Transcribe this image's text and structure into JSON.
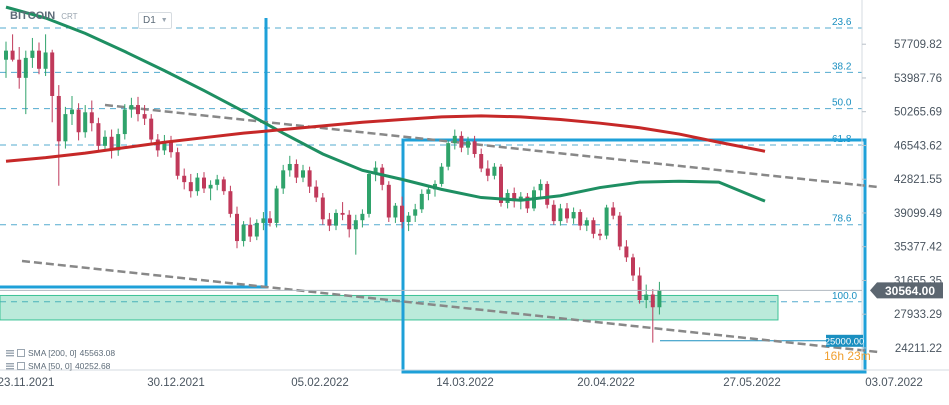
{
  "header": {
    "symbol": "BITCOIN",
    "symbol_sub": "CRT",
    "timeframe": "D1"
  },
  "indicators": [
    {
      "label": "SMA [200, 0]",
      "value": "45563.08",
      "color": "#c62828"
    },
    {
      "label": "SMA [50, 0]",
      "value": "40252.68",
      "color": "#1e8f62"
    }
  ],
  "countdown": "16h 23m",
  "price_tag": "30564.00",
  "level_tag": "25000.00",
  "chart_data": {
    "type": "candlestick",
    "x_ticks": [
      "23.11.2021",
      "30.12.2021",
      "05.02.2022",
      "14.03.2022",
      "20.04.2022",
      "27.05.2022",
      "03.07.2022"
    ],
    "y_ticks": [
      "57709.82",
      "53987.76",
      "50265.69",
      "46543.62",
      "42821.55",
      "39099.49",
      "35377.42",
      "31655.35",
      "27933.29",
      "24211.22"
    ],
    "ylim": [
      22000,
      60600
    ],
    "fib_levels": [
      {
        "label": "23.6",
        "price": 59500
      },
      {
        "label": "38.2",
        "price": 54600
      },
      {
        "label": "50.0",
        "price": 50600
      },
      {
        "label": "61.8",
        "price": 46600
      },
      {
        "label": "78.6",
        "price": 37800
      },
      {
        "label": "100.0",
        "price": 29300
      }
    ],
    "current_price": 30564.0,
    "support_zone": [
      27300,
      30000
    ],
    "support_level": 25000.0,
    "sma_200": [
      [
        0,
        44800
      ],
      [
        6,
        45200
      ],
      [
        12,
        45700
      ],
      [
        18,
        46300
      ],
      [
        24,
        46900
      ],
      [
        30,
        47400
      ],
      [
        36,
        47900
      ],
      [
        42,
        48300
      ],
      [
        48,
        48700
      ],
      [
        54,
        49100
      ],
      [
        60,
        49400
      ],
      [
        66,
        49700
      ],
      [
        72,
        49800
      ],
      [
        78,
        49700
      ],
      [
        84,
        49400
      ],
      [
        90,
        49000
      ],
      [
        96,
        48500
      ],
      [
        102,
        47800
      ],
      [
        108,
        46900
      ],
      [
        115,
        45900
      ]
    ],
    "sma_50": [
      [
        0,
        61800
      ],
      [
        6,
        60600
      ],
      [
        12,
        58900
      ],
      [
        18,
        56900
      ],
      [
        24,
        54800
      ],
      [
        30,
        52600
      ],
      [
        36,
        50300
      ],
      [
        42,
        47900
      ],
      [
        48,
        45600
      ],
      [
        54,
        43800
      ],
      [
        60,
        42800
      ],
      [
        66,
        41700
      ],
      [
        72,
        40800
      ],
      [
        78,
        40500
      ],
      [
        84,
        41000
      ],
      [
        90,
        41900
      ],
      [
        96,
        42500
      ],
      [
        102,
        42600
      ],
      [
        108,
        42500
      ],
      [
        115,
        40400
      ]
    ],
    "candles": [
      [
        0,
        56000,
        58000,
        54000,
        57000
      ],
      [
        1,
        57000,
        58800,
        55800,
        56000
      ],
      [
        2,
        56000,
        57400,
        52800,
        54000
      ],
      [
        3,
        54000,
        57000,
        50000,
        56200
      ],
      [
        4,
        56200,
        58400,
        55100,
        57000
      ],
      [
        5,
        57000,
        57900,
        54400,
        55000
      ],
      [
        6,
        55000,
        58800,
        54200,
        56800
      ],
      [
        7,
        56800,
        57100,
        49100,
        52000
      ],
      [
        8,
        52000,
        53200,
        42100,
        47000
      ],
      [
        9,
        47000,
        50800,
        46200,
        50000
      ],
      [
        10,
        50000,
        52000,
        48800,
        50500
      ],
      [
        11,
        50500,
        51200,
        47100,
        48000
      ],
      [
        12,
        48000,
        51000,
        47400,
        50200
      ],
      [
        13,
        50200,
        51500,
        48100,
        49000
      ],
      [
        14,
        49000,
        49600,
        45800,
        46500
      ],
      [
        15,
        46500,
        48200,
        46000,
        47500
      ],
      [
        16,
        47500,
        48300,
        45100,
        46000
      ],
      [
        17,
        46000,
        48400,
        45400,
        47800
      ],
      [
        18,
        47800,
        51100,
        47200,
        50500
      ],
      [
        19,
        50500,
        51800,
        49600,
        51000
      ],
      [
        20,
        51000,
        51900,
        49200,
        50000
      ],
      [
        21,
        50000,
        51000,
        48800,
        49500
      ],
      [
        22,
        49500,
        50000,
        46800,
        47200
      ],
      [
        23,
        47200,
        47800,
        45300,
        46000
      ],
      [
        24,
        46000,
        47700,
        45500,
        47000
      ],
      [
        25,
        47000,
        47600,
        45200,
        45800
      ],
      [
        26,
        45800,
        46300,
        42800,
        43200
      ],
      [
        27,
        43200,
        44000,
        41700,
        42500
      ],
      [
        28,
        42500,
        43400,
        40800,
        41500
      ],
      [
        29,
        41500,
        43500,
        41000,
        43000
      ],
      [
        30,
        43000,
        43600,
        41300,
        41800
      ],
      [
        31,
        41800,
        42700,
        40500,
        42200
      ],
      [
        32,
        42200,
        43300,
        41600,
        42800
      ],
      [
        33,
        42800,
        43100,
        41100,
        41500
      ],
      [
        34,
        41500,
        42100,
        38600,
        39000
      ],
      [
        35,
        39000,
        39800,
        35200,
        36000
      ],
      [
        36,
        36000,
        38200,
        35400,
        37800
      ],
      [
        37,
        37800,
        38600,
        35900,
        36500
      ],
      [
        38,
        36500,
        38400,
        36100,
        38000
      ],
      [
        39,
        38000,
        39200,
        37200,
        38500
      ],
      [
        40,
        38500,
        39300,
        37600,
        38000
      ],
      [
        41,
        38000,
        42100,
        37500,
        41800
      ],
      [
        42,
        41800,
        44400,
        41200,
        43800
      ],
      [
        43,
        43800,
        45400,
        43100,
        44500
      ],
      [
        44,
        44500,
        45000,
        42400,
        43000
      ],
      [
        45,
        43000,
        44400,
        42500,
        43800
      ],
      [
        46,
        43800,
        44200,
        41300,
        42000
      ],
      [
        47,
        42000,
        42700,
        40300,
        40800
      ],
      [
        48,
        40800,
        41300,
        37800,
        38400
      ],
      [
        49,
        38400,
        39100,
        37100,
        37700
      ],
      [
        50,
        37700,
        39500,
        37200,
        39100
      ],
      [
        51,
        39100,
        40300,
        38300,
        38900
      ],
      [
        52,
        38900,
        39400,
        36400,
        37300
      ],
      [
        53,
        37300,
        38900,
        34500,
        38300
      ],
      [
        54,
        38300,
        39500,
        37500,
        39000
      ],
      [
        55,
        39000,
        43700,
        38600,
        43400
      ],
      [
        56,
        43400,
        44800,
        42600,
        44100
      ],
      [
        57,
        44100,
        44500,
        41600,
        42200
      ],
      [
        58,
        42200,
        42600,
        38100,
        38600
      ],
      [
        59,
        38600,
        40200,
        38000,
        39900
      ],
      [
        60,
        39900,
        40900,
        37400,
        38100
      ],
      [
        61,
        38100,
        39200,
        37100,
        38800
      ],
      [
        62,
        38800,
        40100,
        38100,
        39500
      ],
      [
        63,
        39500,
        41700,
        39100,
        41200
      ],
      [
        64,
        41200,
        42100,
        40500,
        41700
      ],
      [
        65,
        41700,
        42700,
        40900,
        42300
      ],
      [
        66,
        42300,
        44600,
        42000,
        44200
      ],
      [
        67,
        44200,
        47100,
        43800,
        46800
      ],
      [
        68,
        46800,
        48300,
        46100,
        47600
      ],
      [
        69,
        47600,
        48100,
        45800,
        46300
      ],
      [
        70,
        46300,
        47500,
        45500,
        47000
      ],
      [
        71,
        47000,
        47600,
        45200,
        45600
      ],
      [
        72,
        45600,
        46200,
        43600,
        44000
      ],
      [
        73,
        44000,
        44900,
        42600,
        43200
      ],
      [
        74,
        43200,
        44600,
        42800,
        44200
      ],
      [
        75,
        44200,
        44500,
        39800,
        40200
      ],
      [
        76,
        40200,
        41700,
        39600,
        41300
      ],
      [
        77,
        41300,
        41900,
        39700,
        40400
      ],
      [
        78,
        40400,
        41400,
        39500,
        40900
      ],
      [
        79,
        40900,
        41300,
        39100,
        39600
      ],
      [
        80,
        39600,
        42000,
        39300,
        41600
      ],
      [
        81,
        41600,
        42800,
        40900,
        42300
      ],
      [
        82,
        42300,
        42600,
        39600,
        40000
      ],
      [
        83,
        40000,
        40500,
        37800,
        38200
      ],
      [
        84,
        38200,
        40100,
        37700,
        39600
      ],
      [
        85,
        39600,
        40200,
        38000,
        38500
      ],
      [
        86,
        38500,
        39700,
        37900,
        39200
      ],
      [
        87,
        39200,
        39500,
        37200,
        37700
      ],
      [
        88,
        37700,
        38600,
        37100,
        38300
      ],
      [
        89,
        38300,
        38600,
        36300,
        36800
      ],
      [
        90,
        36800,
        37300,
        36100,
        36600
      ],
      [
        91,
        36600,
        40000,
        36200,
        39700
      ],
      [
        92,
        39700,
        40300,
        38400,
        38800
      ],
      [
        93,
        38800,
        39200,
        35000,
        35400
      ],
      [
        94,
        35400,
        36100,
        33700,
        34200
      ],
      [
        95,
        34200,
        34600,
        31600,
        32200
      ],
      [
        96,
        32200,
        33100,
        29100,
        29500
      ],
      [
        97,
        29500,
        31200,
        28600,
        30100
      ],
      [
        98,
        30100,
        30700,
        24800,
        28700
      ],
      [
        99,
        28700,
        31500,
        27900,
        30564
      ]
    ]
  }
}
